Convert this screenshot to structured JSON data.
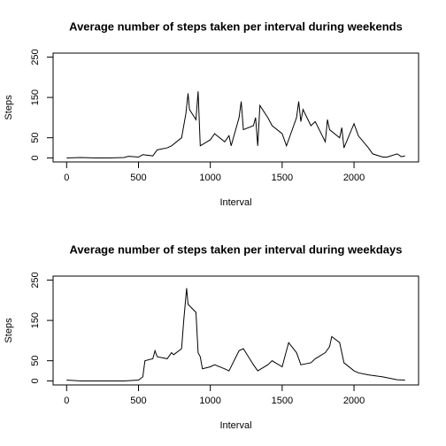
{
  "chart_data": [
    {
      "type": "line",
      "title": "Average number of steps taken per interval during weekends",
      "x_label": "Interval",
      "y_label": "Steps",
      "x": [
        0,
        100,
        200,
        300,
        400,
        430,
        500,
        530,
        600,
        630,
        700,
        730,
        800,
        830,
        845,
        855,
        900,
        915,
        930,
        1000,
        1030,
        1100,
        1130,
        1145,
        1200,
        1215,
        1230,
        1300,
        1315,
        1330,
        1345,
        1400,
        1430,
        1500,
        1530,
        1600,
        1615,
        1630,
        1645,
        1700,
        1730,
        1800,
        1815,
        1830,
        1900,
        1915,
        1930,
        2000,
        2015,
        2030,
        2100,
        2130,
        2200,
        2230,
        2300,
        2330,
        2355
      ],
      "series": [
        {
          "name": "Steps",
          "color": "#000000",
          "values": [
            0,
            1,
            0,
            0,
            1,
            4,
            2,
            8,
            5,
            20,
            25,
            30,
            50,
            110,
            160,
            120,
            95,
            165,
            30,
            45,
            60,
            40,
            55,
            30,
            100,
            140,
            70,
            80,
            100,
            30,
            130,
            100,
            80,
            60,
            30,
            100,
            140,
            90,
            120,
            80,
            90,
            40,
            95,
            70,
            50,
            75,
            25,
            85,
            70,
            55,
            25,
            10,
            2,
            2,
            10,
            3,
            5
          ]
        }
      ],
      "xlim": [
        -94.2,
        2449.2
      ],
      "xticks": [
        0,
        500,
        1000,
        1500,
        2000
      ],
      "ylim": [
        -10,
        260
      ],
      "yticks": [
        0,
        50,
        150,
        250
      ]
    },
    {
      "type": "line",
      "title": "Average number of steps taken per interval during weekdays",
      "x_label": "Interval",
      "y_label": "Steps",
      "x": [
        0,
        100,
        200,
        300,
        400,
        500,
        530,
        545,
        600,
        615,
        630,
        700,
        730,
        745,
        800,
        815,
        835,
        845,
        900,
        915,
        930,
        945,
        1000,
        1030,
        1100,
        1130,
        1200,
        1230,
        1300,
        1330,
        1400,
        1430,
        1500,
        1545,
        1600,
        1630,
        1700,
        1730,
        1800,
        1830,
        1845,
        1900,
        1930,
        2000,
        2030,
        2100,
        2200,
        2300,
        2355
      ],
      "series": [
        {
          "name": "Steps",
          "color": "#000000",
          "values": [
            2,
            0,
            0,
            0,
            0,
            2,
            10,
            50,
            55,
            75,
            60,
            55,
            70,
            65,
            80,
            150,
            230,
            190,
            170,
            70,
            60,
            30,
            35,
            40,
            30,
            25,
            75,
            80,
            40,
            25,
            40,
            50,
            35,
            95,
            70,
            40,
            45,
            55,
            70,
            85,
            110,
            95,
            45,
            25,
            20,
            15,
            10,
            3,
            2
          ]
        }
      ],
      "xlim": [
        -94.2,
        2449.2
      ],
      "xticks": [
        0,
        500,
        1000,
        1500,
        2000
      ],
      "ylim": [
        -10,
        260
      ],
      "yticks": [
        0,
        50,
        150,
        250
      ]
    }
  ]
}
